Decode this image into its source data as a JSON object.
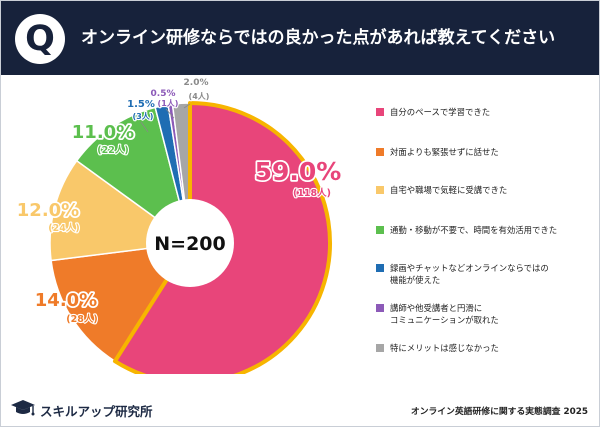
{
  "header": {
    "badge": "Q",
    "title": "オンライン研修ならではの良かった点があれば教えてください"
  },
  "chart_data": {
    "type": "pie",
    "center_label": "N=200",
    "slices": [
      {
        "name": "自分のペースで学習できた",
        "percent_label": "59.0%",
        "count_label": "(118人)",
        "value": 59.0,
        "color": "#e8457a"
      },
      {
        "name": "対面よりも緊張せずに話せた",
        "percent_label": "14.0%",
        "count_label": "(28人)",
        "value": 14.0,
        "color": "#ef7b29"
      },
      {
        "name": "自宅や職場で気軽に受講できた",
        "percent_label": "12.0%",
        "count_label": "(24人)",
        "value": 12.0,
        "color": "#f9c86a"
      },
      {
        "name": "通勤・移動が不要で、時間を有効活用できた",
        "percent_label": "11.0%",
        "count_label": "(22人)",
        "value": 11.0,
        "color": "#5cbf4e"
      },
      {
        "name": "録画やチャットなどオンラインならではの\n機能が使えた",
        "percent_label": "1.5%",
        "count_label": "(3人)",
        "value": 1.5,
        "color": "#1f6db3"
      },
      {
        "name": "講師や他受講者と円滑に\nコミュニケーションが取れた",
        "percent_label": "0.5%",
        "count_label": "(1人)",
        "value": 0.5,
        "color": "#8c5ab8"
      },
      {
        "name": "特にメリットは感じなかった",
        "percent_label": "2.0%",
        "count_label": "(4人)",
        "value": 2.0,
        "color": "#a6a6a6"
      }
    ],
    "highlight": {
      "slice": 0,
      "outline_color": "#f7b500"
    }
  },
  "footer": {
    "logo_text": "スキルアップ研究所",
    "source": "オンライン英語研修に関する実態調査 2025"
  }
}
